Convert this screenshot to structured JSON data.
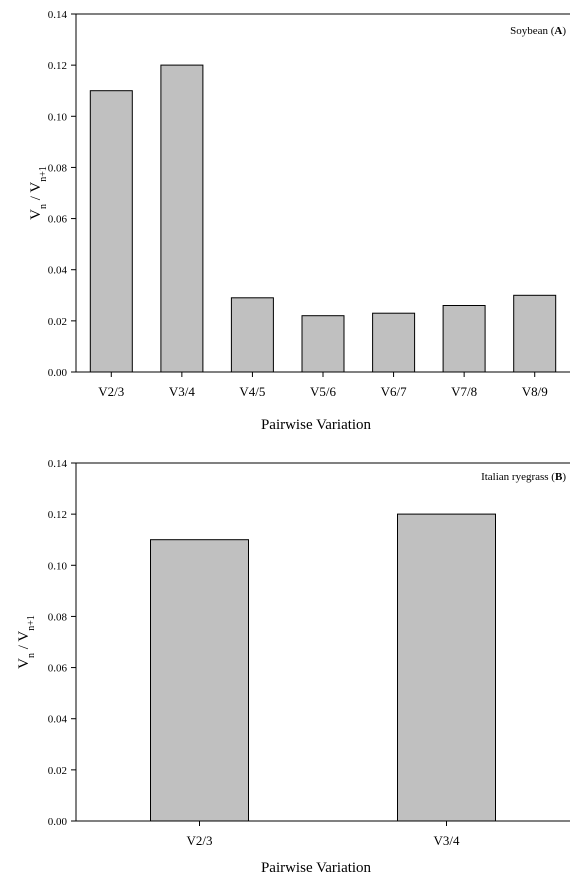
{
  "chart_data": [
    {
      "type": "bar",
      "panel_label": "Soybean (",
      "panel_letter": "A",
      "panel_close": ")",
      "categories": [
        "V2/3",
        "V3/4",
        "V4/5",
        "V5/6",
        "V6/7",
        "V7/8",
        "V8/9"
      ],
      "values": [
        0.11,
        0.12,
        0.029,
        0.022,
        0.023,
        0.026,
        0.03
      ],
      "xlabel": "Pairwise Variation",
      "ylabel_main": "V",
      "ylabel_sub1": "n",
      "ylabel_sep": " / V",
      "ylabel_sub2": "n+1",
      "ylim": [
        0,
        0.14
      ],
      "yticks": [
        "0.00",
        "0.02",
        "0.04",
        "0.06",
        "0.08",
        "0.10",
        "0.12",
        "0.14"
      ],
      "bar_color": "#c0c0c0",
      "grid": false
    },
    {
      "type": "bar",
      "panel_label": "Italian ryegrass (",
      "panel_letter": "B",
      "panel_close": ")",
      "categories": [
        "V2/3",
        "V3/4"
      ],
      "values": [
        0.11,
        0.12
      ],
      "xlabel": "Pairwise Variation",
      "ylabel_main": "V",
      "ylabel_sub1": "n",
      "ylabel_sep": " / V",
      "ylabel_sub2": "n+1",
      "ylim": [
        0,
        0.14
      ],
      "yticks": [
        "0.00",
        "0.02",
        "0.04",
        "0.06",
        "0.08",
        "0.10",
        "0.12",
        "0.14"
      ],
      "bar_color": "#c0c0c0",
      "grid": false
    }
  ]
}
